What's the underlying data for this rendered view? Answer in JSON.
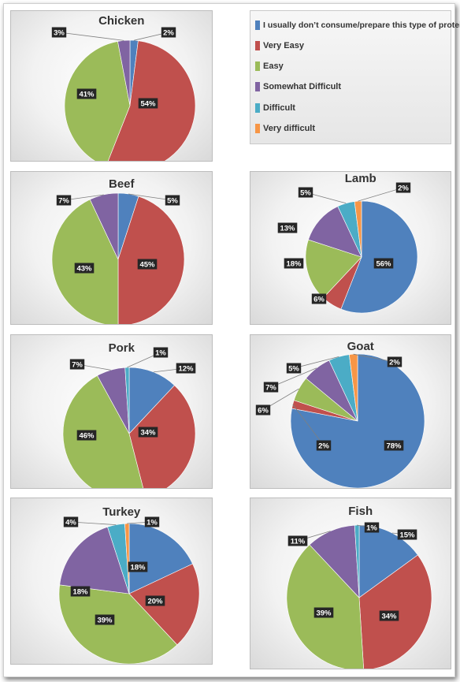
{
  "legend": [
    {
      "label": "I usually don’t consume/prepare this type of protein",
      "color": "#4f81bd"
    },
    {
      "label": "Very Easy",
      "color": "#c0504d"
    },
    {
      "label": "Easy",
      "color": "#9bbb59"
    },
    {
      "label": "Somewhat Difficult",
      "color": "#8064a2"
    },
    {
      "label": "Difficult",
      "color": "#4bacc6"
    },
    {
      "label": "Very difficult",
      "color": "#f79646"
    }
  ],
  "chart_data": [
    {
      "type": "pie",
      "title": "Chicken",
      "series_order": [
        "I usually don’t consume/prepare this type of protein",
        "Very Easy",
        "Easy",
        "Somewhat Difficult",
        "Difficult",
        "Very difficult"
      ],
      "values": [
        2,
        54,
        41,
        3,
        0,
        0
      ],
      "labels": [
        "2%",
        "54%",
        "41%",
        "3%",
        "",
        ""
      ]
    },
    {
      "type": "pie",
      "title": "Beef",
      "values": [
        5,
        45,
        43,
        7,
        0,
        0
      ],
      "labels": [
        "5%",
        "45%",
        "43%",
        "7%",
        "",
        ""
      ]
    },
    {
      "type": "pie",
      "title": "Lamb",
      "values": [
        56,
        6,
        18,
        13,
        5,
        2
      ],
      "labels": [
        "56%",
        "6%",
        "18%",
        "13%",
        "5%",
        "2%"
      ]
    },
    {
      "type": "pie",
      "title": "Pork",
      "values": [
        12,
        34,
        46,
        7,
        1,
        0
      ],
      "labels": [
        "12%",
        "34%",
        "46%",
        "7%",
        "1%",
        ""
      ]
    },
    {
      "type": "pie",
      "title": "Goat",
      "values": [
        78,
        2,
        6,
        7,
        5,
        2
      ],
      "labels": [
        "78%",
        "2%",
        "6%",
        "7%",
        "5%",
        "2%"
      ]
    },
    {
      "type": "pie",
      "title": "Turkey",
      "values": [
        18,
        20,
        39,
        18,
        4,
        1
      ],
      "labels": [
        "18%",
        "20%",
        "39%",
        "18%",
        "4%",
        "1%"
      ]
    },
    {
      "type": "pie",
      "title": "Fish",
      "values": [
        15,
        34,
        39,
        11,
        1,
        0
      ],
      "labels": [
        "15%",
        "34%",
        "39%",
        "11%",
        "1%",
        ""
      ]
    }
  ]
}
